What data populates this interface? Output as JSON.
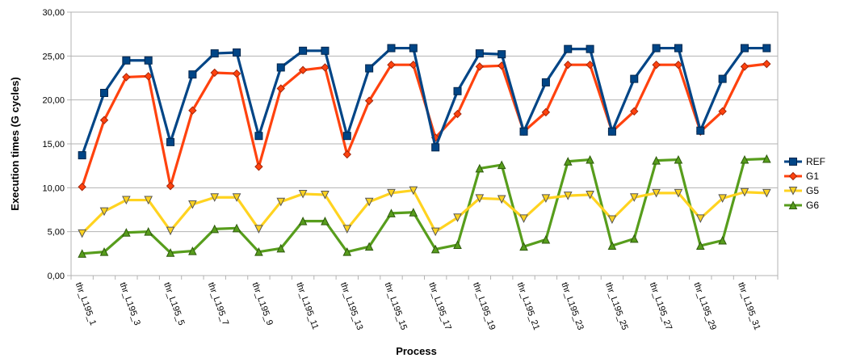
{
  "chart_data": {
    "type": "line",
    "title": "",
    "xlabel": "Process",
    "ylabel": "Execution times (G cycles)",
    "ylim": [
      0,
      30
    ],
    "yticks": [
      "0,00",
      "5,00",
      "10,00",
      "15,00",
      "20,00",
      "25,00",
      "30,00"
    ],
    "grid": true,
    "legend_position": "right",
    "categories": [
      "thr_L195_1",
      "",
      "thr_L195_3",
      "",
      "thr_L195_5",
      "",
      "thr_L195_7",
      "",
      "thr_L195_9",
      "",
      "thr_L195_11",
      "",
      "thr_L195_13",
      "",
      "thr_L195_15",
      "",
      "thr_L195_17",
      "",
      "thr_L195_19",
      "",
      "thr_L195_21",
      "",
      "thr_L195_23",
      "",
      "thr_L195_25",
      "",
      "thr_L195_27",
      "",
      "thr_L195_29",
      "",
      "thr_L195_31",
      ""
    ],
    "series": [
      {
        "name": "REF",
        "color": "#004586",
        "marker": "square",
        "values": [
          13.7,
          20.8,
          24.5,
          24.5,
          15.2,
          22.9,
          25.3,
          25.4,
          15.9,
          23.7,
          25.6,
          25.6,
          15.9,
          23.6,
          25.9,
          25.9,
          14.6,
          21.0,
          25.3,
          25.2,
          16.4,
          22.0,
          25.8,
          25.8,
          16.4,
          22.4,
          25.9,
          25.9,
          16.5,
          22.4,
          25.9,
          25.9
        ]
      },
      {
        "name": "G1",
        "color": "#ff420e",
        "marker": "diamond",
        "values": [
          10.1,
          17.7,
          22.6,
          22.7,
          10.2,
          18.8,
          23.1,
          23.0,
          12.4,
          21.3,
          23.4,
          23.7,
          13.8,
          19.9,
          24.0,
          24.0,
          15.7,
          18.4,
          23.8,
          23.9,
          16.4,
          18.6,
          24.0,
          24.0,
          16.4,
          18.7,
          24.0,
          24.0,
          16.4,
          18.7,
          23.8,
          24.1
        ]
      },
      {
        "name": "G5",
        "color": "#ffd320",
        "marker": "triangle-down",
        "values": [
          4.8,
          7.3,
          8.6,
          8.6,
          5.1,
          8.1,
          8.9,
          8.9,
          5.3,
          8.4,
          9.3,
          9.2,
          5.3,
          8.4,
          9.4,
          9.7,
          5.0,
          6.6,
          8.8,
          8.7,
          6.5,
          8.8,
          9.1,
          9.2,
          6.4,
          8.9,
          9.4,
          9.4,
          6.5,
          8.8,
          9.5,
          9.4
        ]
      },
      {
        "name": "G6",
        "color": "#579d1c",
        "marker": "triangle-up",
        "values": [
          2.5,
          2.7,
          4.9,
          5.0,
          2.6,
          2.8,
          5.3,
          5.4,
          2.7,
          3.1,
          6.2,
          6.2,
          2.7,
          3.3,
          7.1,
          7.2,
          3.0,
          3.5,
          12.2,
          12.6,
          3.3,
          4.1,
          13.0,
          13.2,
          3.4,
          4.2,
          13.1,
          13.2,
          3.4,
          4.0,
          13.2,
          13.3
        ]
      }
    ]
  }
}
